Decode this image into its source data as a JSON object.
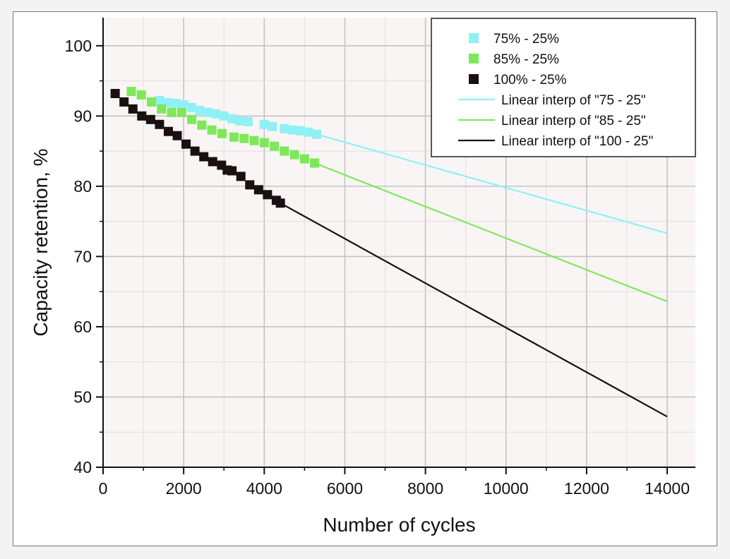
{
  "chart_data": {
    "type": "scatter",
    "title": "",
    "xlabel": "Number of cycles",
    "ylabel": "Capacity retention, %",
    "xlim": [
      0,
      14700
    ],
    "ylim": [
      40,
      104
    ],
    "xticks": [
      0,
      2000,
      4000,
      6000,
      8000,
      10000,
      12000,
      14000
    ],
    "yticks": [
      40,
      50,
      60,
      70,
      80,
      90,
      100
    ],
    "grid": true,
    "legend_position": "top-right",
    "plot_background": "#faf5f5",
    "series": [
      {
        "name": "75% - 25%",
        "kind": "scatter",
        "marker": "square",
        "color": "#8ff0f5",
        "x": [
          1400,
          1600,
          1800,
          2000,
          2200,
          2400,
          2600,
          2800,
          3000,
          3200,
          3400,
          3600,
          4000,
          4200,
          4500,
          4700,
          4900,
          5100,
          5300
        ],
        "y": [
          92.2,
          91.9,
          91.8,
          91.6,
          91.2,
          90.8,
          90.5,
          90.3,
          90.0,
          89.6,
          89.3,
          89.2,
          88.8,
          88.5,
          88.2,
          88.0,
          87.9,
          87.7,
          87.4
        ]
      },
      {
        "name": "85% - 25%",
        "kind": "scatter",
        "marker": "square",
        "color": "#7de85a",
        "x": [
          700,
          950,
          1200,
          1450,
          1700,
          1950,
          2200,
          2450,
          2700,
          2950,
          3250,
          3500,
          3750,
          4000,
          4250,
          4500,
          4750,
          5000,
          5250
        ],
        "y": [
          93.5,
          93.0,
          92.0,
          91.0,
          90.5,
          90.5,
          89.5,
          88.7,
          88.0,
          87.5,
          87.0,
          86.8,
          86.5,
          86.2,
          85.7,
          85.0,
          84.5,
          83.9,
          83.3
        ]
      },
      {
        "name": "100% - 25%",
        "kind": "scatter",
        "marker": "square",
        "color": "#1a1010",
        "x": [
          300,
          520,
          740,
          960,
          1180,
          1400,
          1620,
          1840,
          2060,
          2280,
          2500,
          2720,
          2940,
          3080,
          3200,
          3420,
          3640,
          3860,
          4080,
          4300,
          4400
        ],
        "y": [
          93.2,
          92.0,
          91.0,
          90.0,
          89.5,
          88.8,
          87.8,
          87.2,
          86.0,
          85.0,
          84.2,
          83.5,
          83.0,
          82.3,
          82.2,
          81.4,
          80.2,
          79.5,
          78.8,
          78.0,
          77.6
        ]
      },
      {
        "name": "Linear interp of \"75 - 25\"",
        "kind": "line",
        "color": "#8ff0f5",
        "x": [
          5300,
          14000
        ],
        "y": [
          87.4,
          73.3
        ]
      },
      {
        "name": "Linear interp of \"85 - 25\"",
        "kind": "line",
        "color": "#7de85a",
        "x": [
          5250,
          14000
        ],
        "y": [
          83.3,
          63.6
        ]
      },
      {
        "name": "Linear interp of \"100 - 25\"",
        "kind": "line",
        "color": "#1a1010",
        "x": [
          4400,
          14000
        ],
        "y": [
          77.6,
          47.2
        ]
      }
    ]
  }
}
